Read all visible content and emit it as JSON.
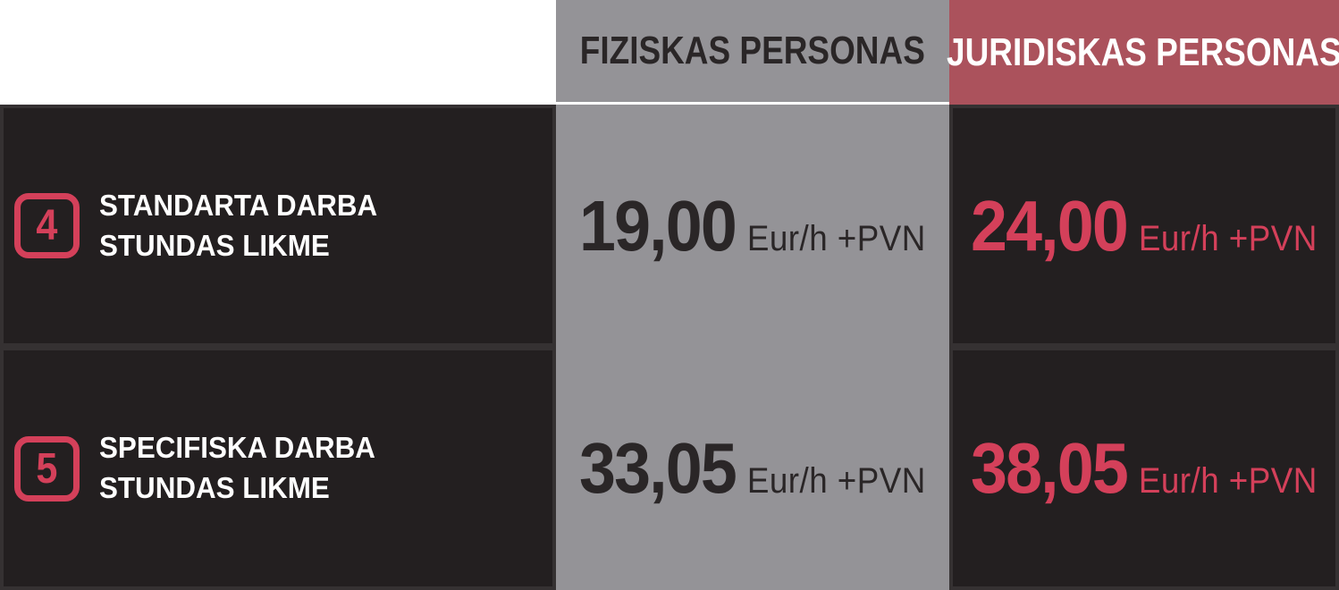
{
  "colors": {
    "accent_red": "#d4405a",
    "header_red_bg": "#ab525c",
    "gray_bg": "#949397",
    "dark_bg": "#231f20",
    "dark_border": "#353132",
    "dark_text": "#2a2627",
    "white": "#ffffff"
  },
  "chart_data": {
    "type": "table",
    "columns": [
      {
        "key": "fiziskas",
        "label": "FIZISKAS PERSONAS"
      },
      {
        "key": "juridiskas",
        "label": "JURIDISKAS PERSONAS"
      }
    ],
    "rows": [
      {
        "number": "4",
        "label_line1": "STANDARTA DARBA",
        "label_line2": "STUNDAS LIKME",
        "fiziskas_price": "19,00",
        "fiziskas_unit": "Eur/h +PVN",
        "fiziskas_value_eur_per_h": 19.0,
        "juridiskas_price": "24,00",
        "juridiskas_unit": "Eur/h +PVN",
        "juridiskas_value_eur_per_h": 24.0
      },
      {
        "number": "5",
        "label_line1": "SPECIFISKA DARBA",
        "label_line2": "STUNDAS LIKME",
        "fiziskas_price": "33,05",
        "fiziskas_unit": "Eur/h +PVN",
        "fiziskas_value_eur_per_h": 33.05,
        "juridiskas_price": "38,05",
        "juridiskas_unit": "Eur/h +PVN",
        "juridiskas_value_eur_per_h": 38.05
      }
    ]
  }
}
